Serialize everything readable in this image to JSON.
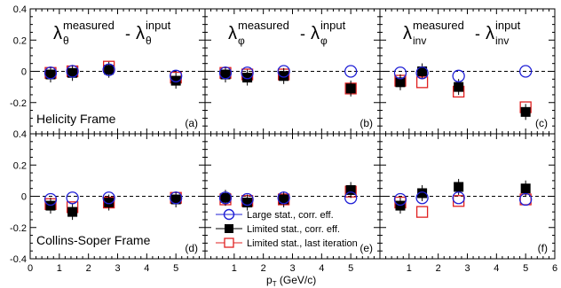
{
  "figure": {
    "x_axis_label_main": "p",
    "x_axis_label_sub": "T",
    "x_axis_label_unit": " (GeV/c)"
  },
  "colors": {
    "large_stat": "#1f1fd6",
    "limited_stat": "#000000",
    "last_iteration": "#e02020",
    "reference_line": "#000000"
  },
  "legend": {
    "entries": [
      {
        "label": "Large stat., corr. eff.",
        "marker": "open-circle",
        "color": "#1f1fd6"
      },
      {
        "label": "Limited stat., corr. eff.",
        "marker": "filled-square",
        "color": "#000000"
      },
      {
        "label": "Limited stat., last iteration",
        "marker": "open-square",
        "color": "#e02020"
      }
    ]
  },
  "row_labels": [
    "Helicity Frame",
    "Collins-Soper Frame"
  ],
  "titles": [
    {
      "sym": "λ",
      "sub_meas": "θ",
      "sup_meas": "measured",
      "sub_in": "θ",
      "sup_in": "input"
    },
    {
      "sym": "λ",
      "sub_meas": "φ",
      "sup_meas": "measured",
      "sub_in": "φ",
      "sup_in": "input"
    },
    {
      "sym": "λ",
      "sub_meas": "inv",
      "sup_meas": "measured",
      "sub_in": "inv",
      "sup_in": "input"
    }
  ],
  "chart_data": {
    "type": "scatter",
    "xlim": [
      0,
      6
    ],
    "ylim": [
      -0.4,
      0.4
    ],
    "x_ticks_labeled": [
      "0",
      "1",
      "2",
      "3",
      "4",
      "5",
      "6"
    ],
    "y_ticks_labeled": [
      "-0.4",
      "-0.2",
      "0",
      "0.2",
      "0.4"
    ],
    "series_names": [
      "Large stat., corr. eff.",
      "Limited stat., corr. eff.",
      "Limited stat., last iteration"
    ],
    "panels": [
      {
        "tag": "(a)",
        "row": 0,
        "col": 0,
        "large": [
          [
            0.7,
            -0.01
          ],
          [
            1.45,
            0.0
          ],
          [
            2.7,
            0.01
          ],
          [
            5.0,
            -0.03
          ]
        ],
        "limited": [
          [
            0.7,
            -0.02
          ],
          [
            1.45,
            -0.01
          ],
          [
            2.7,
            0.01
          ],
          [
            5.0,
            -0.06
          ]
        ],
        "last": [
          [
            0.7,
            -0.01
          ],
          [
            1.45,
            0.0
          ],
          [
            2.7,
            0.03
          ],
          [
            5.0,
            -0.04
          ]
        ]
      },
      {
        "tag": "(b)",
        "row": 0,
        "col": 1,
        "large": [
          [
            0.7,
            -0.01
          ],
          [
            1.45,
            -0.01
          ],
          [
            2.7,
            0.0
          ],
          [
            5.0,
            0.0
          ]
        ],
        "limited": [
          [
            0.7,
            -0.02
          ],
          [
            1.45,
            -0.04
          ],
          [
            2.7,
            -0.03
          ],
          [
            5.0,
            -0.11
          ]
        ],
        "last": [
          [
            0.7,
            -0.01
          ],
          [
            1.45,
            -0.02
          ],
          [
            2.7,
            -0.02
          ],
          [
            5.0,
            -0.11
          ]
        ]
      },
      {
        "tag": "(c)",
        "row": 0,
        "col": 2,
        "large": [
          [
            0.7,
            -0.01
          ],
          [
            1.45,
            -0.01
          ],
          [
            2.7,
            -0.03
          ],
          [
            5.0,
            0.0
          ]
        ],
        "limited": [
          [
            0.7,
            -0.07
          ],
          [
            1.45,
            0.0
          ],
          [
            2.7,
            -0.1
          ],
          [
            5.0,
            -0.26
          ]
        ],
        "last": [
          [
            0.7,
            -0.06
          ],
          [
            1.45,
            -0.07
          ],
          [
            2.7,
            -0.13
          ],
          [
            5.0,
            -0.23
          ]
        ]
      },
      {
        "tag": "(d)",
        "row": 1,
        "col": 0,
        "large": [
          [
            0.7,
            -0.02
          ],
          [
            1.45,
            -0.01
          ],
          [
            2.7,
            -0.01
          ],
          [
            5.0,
            -0.01
          ]
        ],
        "limited": [
          [
            0.7,
            -0.06
          ],
          [
            1.45,
            -0.1
          ],
          [
            2.7,
            -0.04
          ],
          [
            5.0,
            -0.02
          ]
        ],
        "last": [
          [
            0.7,
            -0.05
          ],
          [
            1.45,
            -0.07
          ],
          [
            2.7,
            -0.04
          ],
          [
            5.0,
            -0.01
          ]
        ]
      },
      {
        "tag": "(e)",
        "row": 1,
        "col": 1,
        "large": [
          [
            0.7,
            -0.01
          ],
          [
            1.45,
            -0.02
          ],
          [
            2.7,
            -0.01
          ],
          [
            5.0,
            -0.01
          ]
        ],
        "limited": [
          [
            0.7,
            -0.01
          ],
          [
            1.45,
            -0.04
          ],
          [
            2.7,
            -0.02
          ],
          [
            5.0,
            0.04
          ]
        ],
        "last": [
          [
            0.7,
            -0.02
          ],
          [
            1.45,
            -0.03
          ],
          [
            2.7,
            -0.02
          ],
          [
            5.0,
            0.03
          ]
        ]
      },
      {
        "tag": "(f)",
        "row": 1,
        "col": 2,
        "large": [
          [
            0.7,
            -0.02
          ],
          [
            1.45,
            -0.01
          ],
          [
            2.7,
            -0.01
          ],
          [
            5.0,
            -0.02
          ]
        ],
        "limited": [
          [
            0.7,
            -0.06
          ],
          [
            1.45,
            0.02
          ],
          [
            2.7,
            0.06
          ],
          [
            5.0,
            0.05
          ]
        ],
        "last": [
          [
            0.7,
            -0.04
          ],
          [
            1.45,
            -0.1
          ],
          [
            2.7,
            -0.03
          ],
          [
            5.0,
            -0.02
          ]
        ]
      }
    ]
  }
}
